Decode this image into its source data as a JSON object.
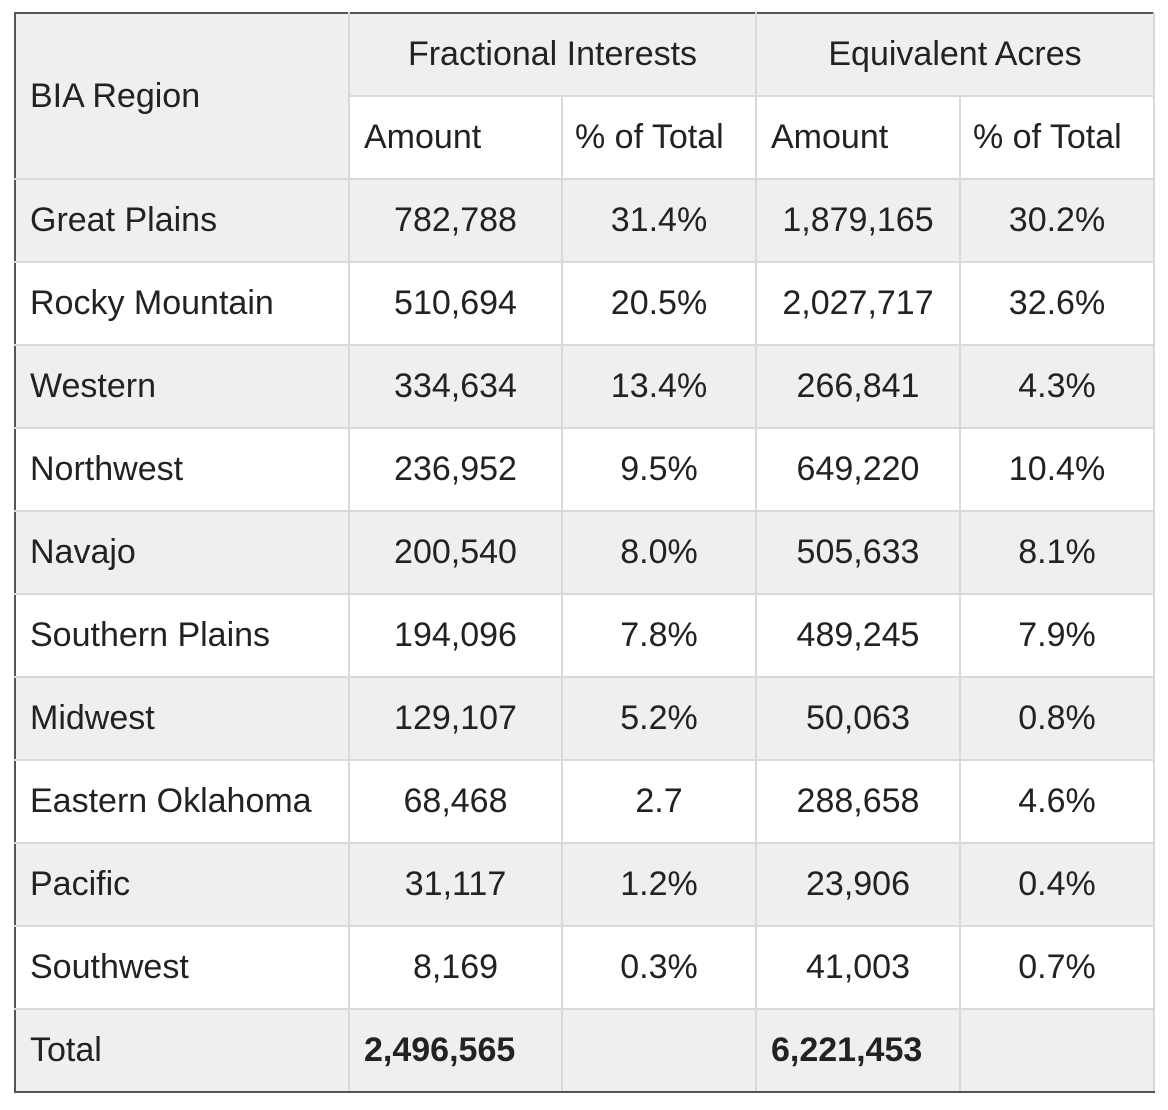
{
  "header": {
    "region_label": "BIA Region",
    "groups": [
      {
        "label": "Fractional Interests"
      },
      {
        "label": "Equivalent Acres"
      }
    ],
    "subheaders": [
      "Amount",
      "% of Total",
      "Amount",
      "% of Total"
    ]
  },
  "rows": [
    {
      "region": "Great Plains",
      "fi_amount": "782,788",
      "fi_pct": "31.4%",
      "ea_amount": "1,879,165",
      "ea_pct": "30.2%"
    },
    {
      "region": "Rocky Mountain",
      "fi_amount": "510,694",
      "fi_pct": "20.5%",
      "ea_amount": "2,027,717",
      "ea_pct": "32.6%"
    },
    {
      "region": "Western",
      "fi_amount": "334,634",
      "fi_pct": "13.4%",
      "ea_amount": "266,841",
      "ea_pct": "4.3%"
    },
    {
      "region": "Northwest",
      "fi_amount": "236,952",
      "fi_pct": "9.5%",
      "ea_amount": "649,220",
      "ea_pct": "10.4%"
    },
    {
      "region": "Navajo",
      "fi_amount": "200,540",
      "fi_pct": "8.0%",
      "ea_amount": "505,633",
      "ea_pct": "8.1%"
    },
    {
      "region": "Southern Plains",
      "fi_amount": "194,096",
      "fi_pct": "7.8%",
      "ea_amount": "489,245",
      "ea_pct": "7.9%"
    },
    {
      "region": "Midwest",
      "fi_amount": "129,107",
      "fi_pct": "5.2%",
      "ea_amount": "50,063",
      "ea_pct": "0.8%"
    },
    {
      "region": "Eastern Oklahoma",
      "fi_amount": "68,468",
      "fi_pct": "2.7",
      "ea_amount": "288,658",
      "ea_pct": "4.6%"
    },
    {
      "region": "Pacific",
      "fi_amount": "31,117",
      "fi_pct": "1.2%",
      "ea_amount": "23,906",
      "ea_pct": "0.4%"
    },
    {
      "region": "Southwest",
      "fi_amount": "8,169",
      "fi_pct": "0.3%",
      "ea_amount": "41,003",
      "ea_pct": "0.7%"
    }
  ],
  "total": {
    "label": "Total",
    "fi_amount": "2,496,565",
    "ea_amount": "6,221,453"
  }
}
